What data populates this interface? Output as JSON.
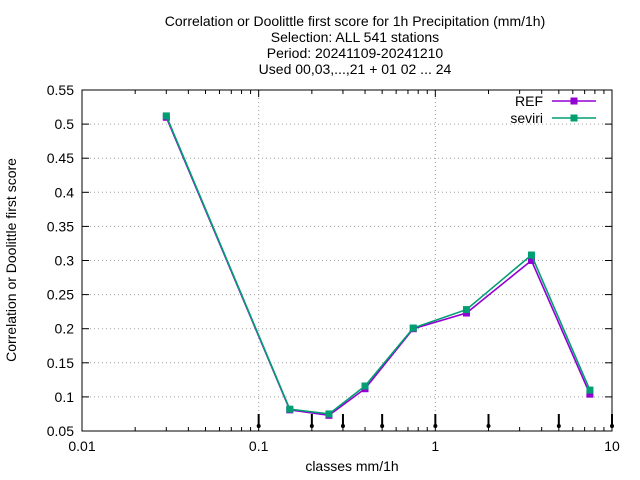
{
  "chart_data": {
    "type": "line",
    "title_lines": [
      "Correlation or Doolittle first score  for 1h Precipitation (mm/1h)",
      "Selection: ALL    541 stations",
      "Period: 20241109-20241210",
      "Used 00,03,...,21 + 01 02 ... 24"
    ],
    "xlabel": "classes mm/1h",
    "ylabel": "Correlation or Doolittle first score",
    "x_scale": "log",
    "xlim": [
      0.01,
      10
    ],
    "ylim": [
      0.05,
      0.55
    ],
    "x_ticks": [
      0.01,
      0.1,
      1,
      10
    ],
    "x_tick_labels": [
      "0.01",
      "0.1",
      "1",
      "10"
    ],
    "y_ticks": [
      0.05,
      0.1,
      0.15,
      0.2,
      0.25,
      0.3,
      0.35,
      0.4,
      0.45,
      0.5,
      0.55
    ],
    "y_tick_labels": [
      "0.05",
      "0.1",
      "0.15",
      "0.2",
      "0.25",
      "0.3",
      "0.35",
      "0.4",
      "0.45",
      "0.5",
      "0.55"
    ],
    "grid": true,
    "legend_position": "top-right",
    "x": [
      0.03,
      0.15,
      0.25,
      0.4,
      0.75,
      1.5,
      3.5,
      7.5
    ],
    "series": [
      {
        "name": "REF",
        "color": "#9400d3",
        "values": [
          0.51,
          0.081,
          0.073,
          0.112,
          0.2,
          0.223,
          0.3,
          0.104
        ]
      },
      {
        "name": "seviri",
        "color": "#009e73",
        "values": [
          0.512,
          0.082,
          0.075,
          0.116,
          0.201,
          0.228,
          0.308,
          0.11
        ]
      }
    ],
    "class_boundaries": [
      0.1,
      0.2,
      0.3,
      0.5,
      1,
      2,
      5,
      10
    ]
  }
}
